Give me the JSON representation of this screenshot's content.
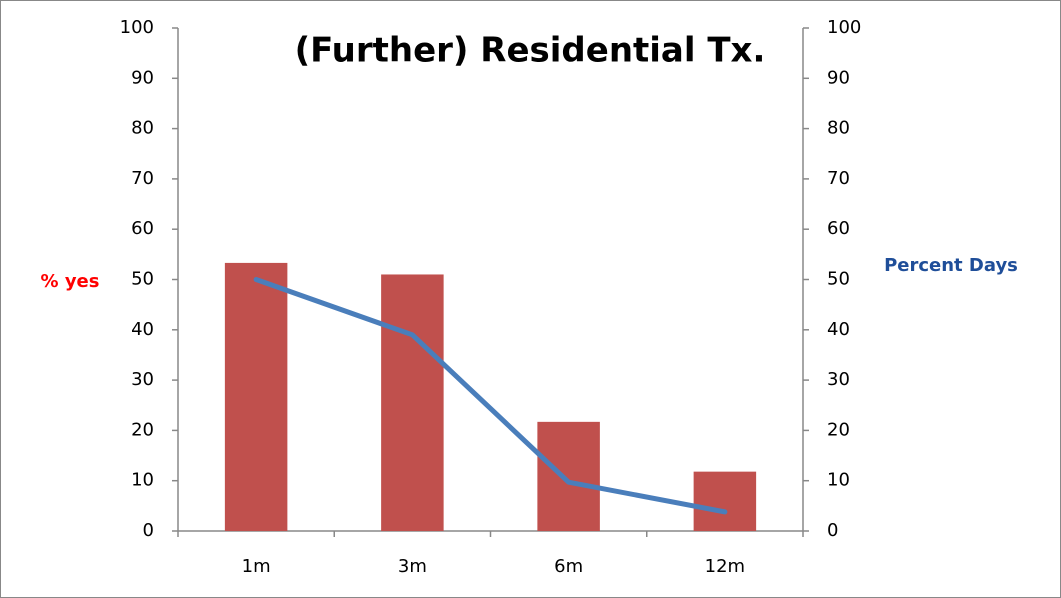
{
  "chart_data": {
    "type": "bar",
    "title": "(Further) Residential Tx.",
    "ylabel": "% yes",
    "ylabel_color": "#ff0000",
    "y2label": "Percent Days",
    "y2label_color": "#1f4e99",
    "categories": [
      "1m",
      "3m",
      "6m",
      "12m"
    ],
    "series": [
      {
        "type": "bar",
        "color": "#c0504d",
        "values": [
          53.3,
          51,
          21.7,
          11.8
        ]
      },
      {
        "type": "line",
        "axis": "y2",
        "color": "#4a7ebb",
        "values": [
          50,
          39,
          9.7,
          3.8
        ]
      }
    ],
    "ylim": [
      0,
      100
    ],
    "yticks": [
      0,
      10,
      20,
      30,
      40,
      50,
      60,
      70,
      80,
      90,
      100
    ],
    "y2lim": [
      0,
      100
    ],
    "y2ticks": [
      0,
      10,
      20,
      30,
      40,
      50,
      60,
      70,
      80,
      90,
      100
    ]
  }
}
